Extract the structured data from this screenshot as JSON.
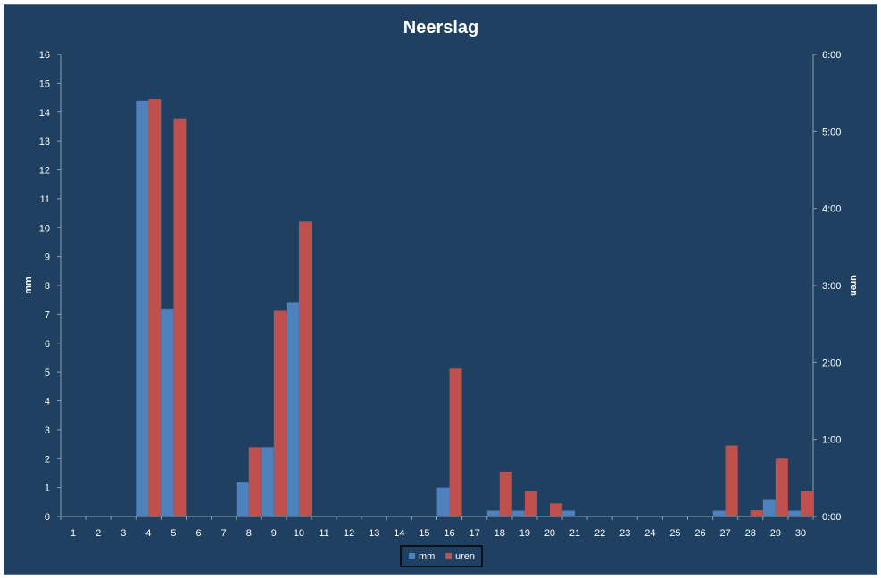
{
  "chart_data": {
    "type": "bar",
    "title": "Neerslag",
    "ylabel_left": "mm",
    "ylabel_right": "uren",
    "categories": [
      "1",
      "2",
      "3",
      "4",
      "5",
      "6",
      "7",
      "8",
      "9",
      "10",
      "11",
      "12",
      "13",
      "14",
      "15",
      "16",
      "17",
      "18",
      "19",
      "20",
      "21",
      "22",
      "23",
      "24",
      "25",
      "26",
      "27",
      "28",
      "29",
      "30"
    ],
    "y_left": {
      "min": 0,
      "max": 16,
      "ticks": [
        "0",
        "1",
        "2",
        "3",
        "4",
        "5",
        "6",
        "7",
        "8",
        "9",
        "10",
        "11",
        "12",
        "13",
        "14",
        "15",
        "16"
      ]
    },
    "y_right": {
      "min_hours": 0,
      "max_hours": 6,
      "ticks": [
        "0:00",
        "1:00",
        "2:00",
        "3:00",
        "4:00",
        "5:00",
        "6:00"
      ]
    },
    "series": [
      {
        "name": "mm",
        "axis": "left",
        "color": "#4f81bd",
        "values": [
          0,
          0,
          0,
          14.4,
          7.2,
          0,
          0,
          1.2,
          2.4,
          7.4,
          0,
          0,
          0,
          0,
          0,
          1.0,
          0,
          0.2,
          0.2,
          0,
          0.2,
          0,
          0,
          0,
          0,
          0,
          0.2,
          0,
          0.6,
          0.2
        ]
      },
      {
        "name": "uren",
        "axis": "right",
        "color": "#c0504d",
        "values_hours": [
          0,
          0,
          0,
          5.42,
          5.17,
          0,
          0,
          0.9,
          2.67,
          3.83,
          0,
          0,
          0,
          0,
          0,
          1.92,
          0,
          0.58,
          0.33,
          0.17,
          0,
          0,
          0,
          0,
          0,
          0,
          0.92,
          0.08,
          0.75,
          0.33
        ]
      }
    ],
    "legend_position": "bottom",
    "grid": false
  }
}
